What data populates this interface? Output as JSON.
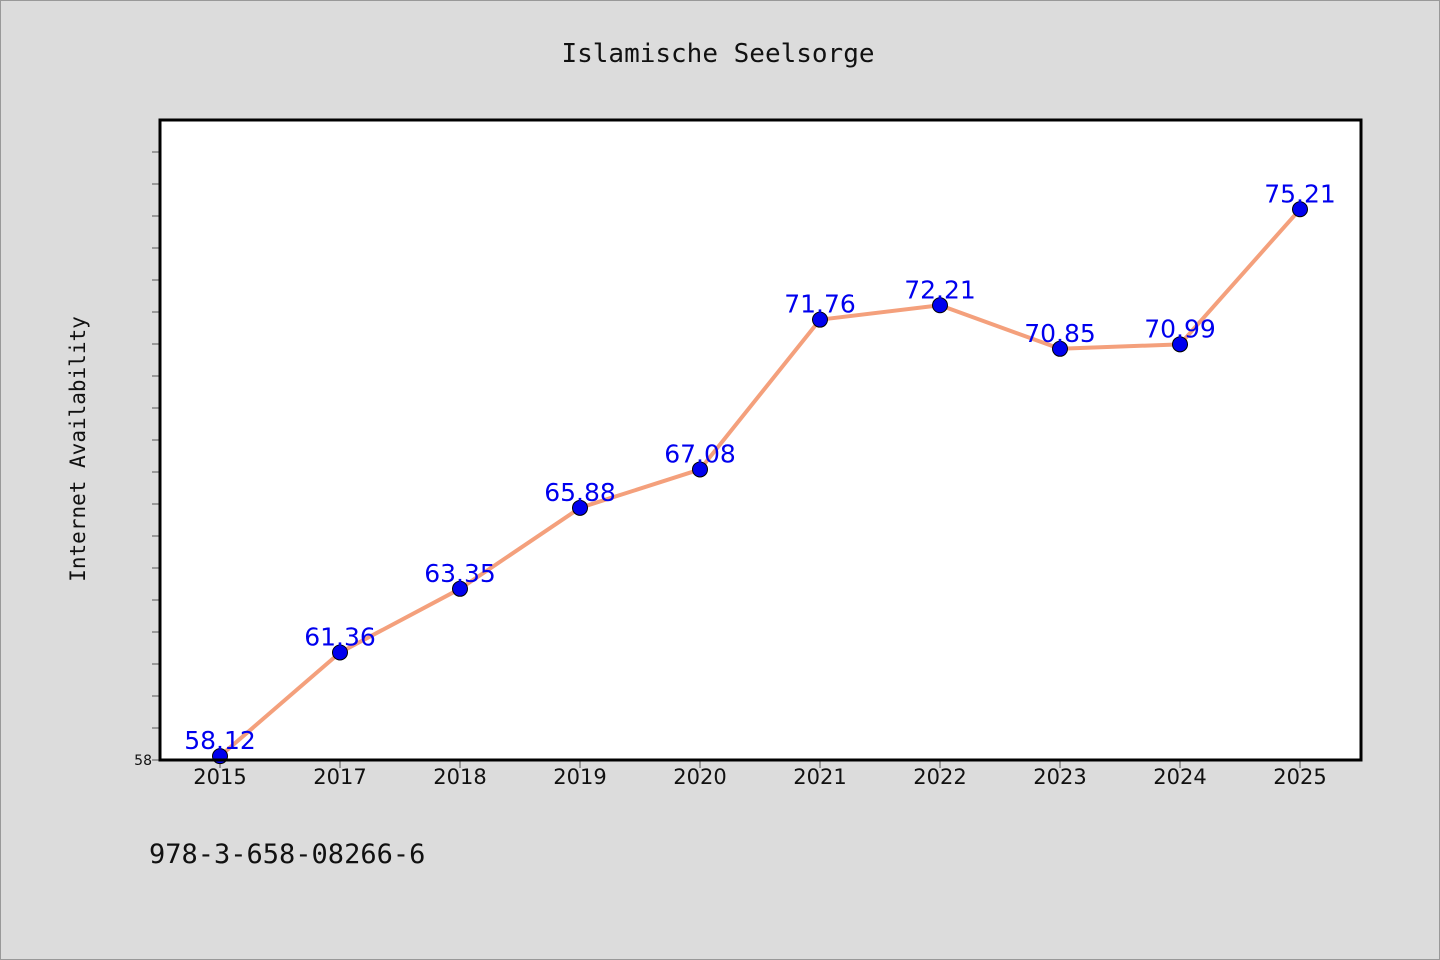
{
  "chart_data": {
    "type": "line",
    "title": "Islamische Seelsorge",
    "xlabel": "",
    "ylabel": "Internet Availability",
    "categories": [
      "2015",
      "2017",
      "2018",
      "2019",
      "2020",
      "2021",
      "2022",
      "2023",
      "2024",
      "2025"
    ],
    "series": [
      {
        "values": [
          58.12,
          61.36,
          63.35,
          65.88,
          67.08,
          71.76,
          72.21,
          70.85,
          70.99,
          75.21
        ],
        "labels": [
          "58.12",
          "61.36",
          "63.35",
          "65.88",
          "67.08",
          "71.76",
          "72.21",
          "70.85",
          "70.99",
          "75.21"
        ]
      }
    ],
    "ytick_labels": [
      "58"
    ],
    "ylim": [
      58.0,
      78.0
    ],
    "grid": false,
    "colors": {
      "line": "#f4a07c",
      "marker": "#0000ee",
      "label": "#0000ee",
      "background": "#dcdcdc",
      "plot_background": "#ffffff"
    }
  },
  "footer": {
    "isbn": "978-3-658-08266-6"
  }
}
